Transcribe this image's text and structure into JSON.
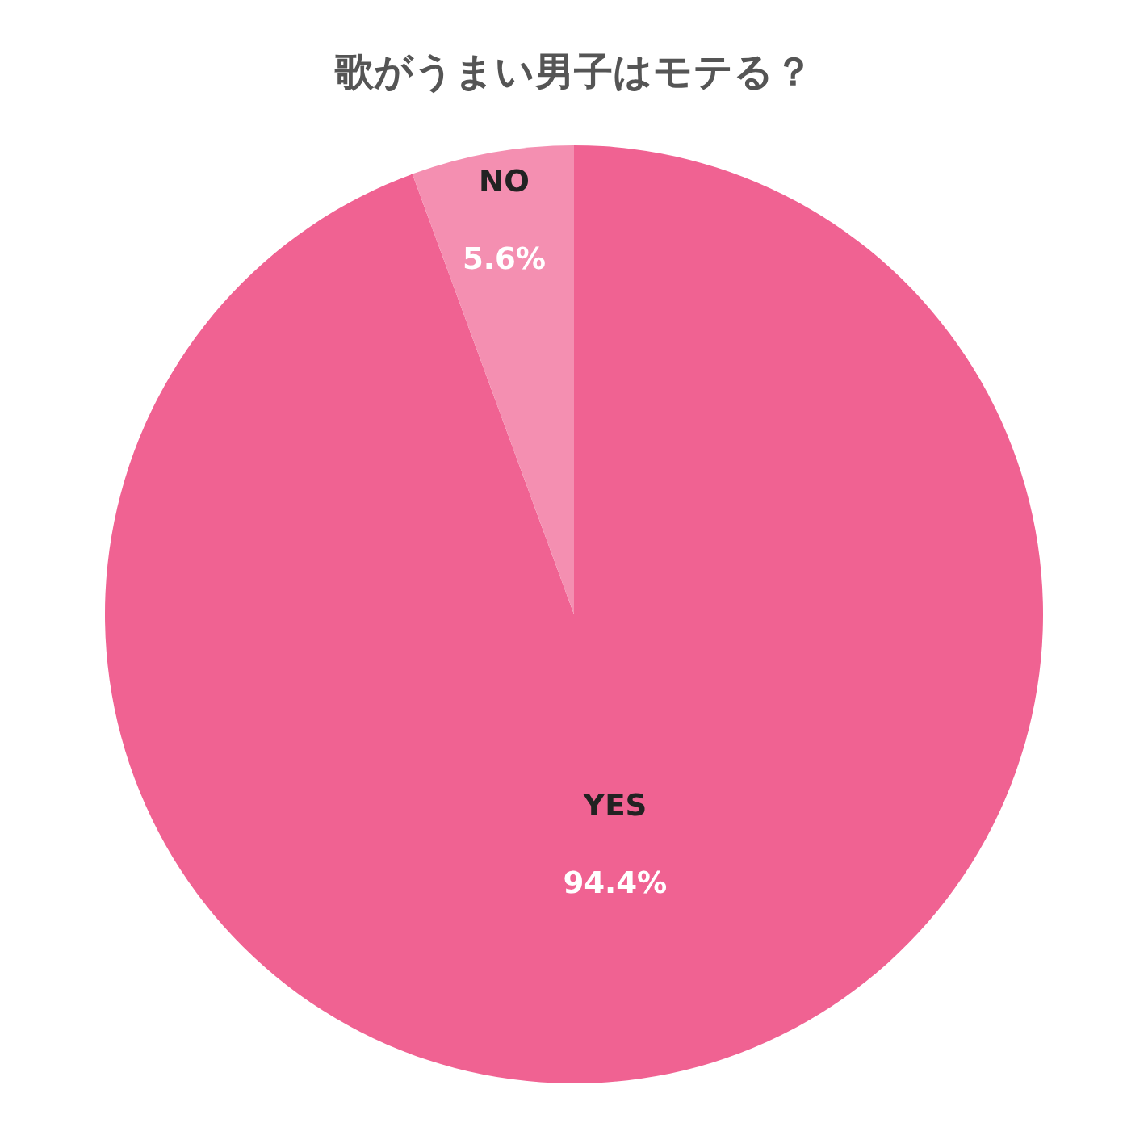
{
  "chart_data": {
    "type": "pie",
    "title": "歌がうまい男子はモテる？",
    "categories": [
      "YES",
      "NO"
    ],
    "values": [
      94.4,
      5.6
    ],
    "colors": [
      "#f06292",
      "#f48fb1"
    ],
    "value_labels": [
      "94.4%",
      "5.6%"
    ],
    "legend": false
  }
}
